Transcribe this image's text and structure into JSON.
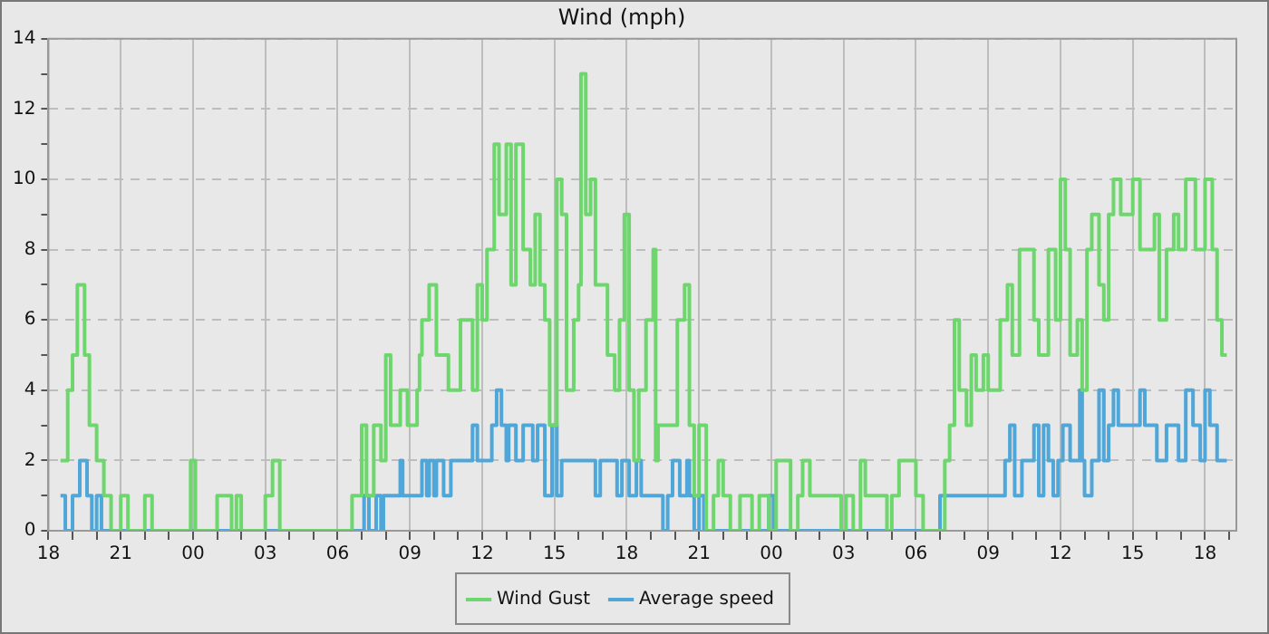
{
  "chart_data": {
    "type": "step",
    "title": "Wind (mph)",
    "xlim": [
      18,
      67.3
    ],
    "xticks": [
      {
        "value": 18,
        "label": "18"
      },
      {
        "value": 19,
        "label": null
      },
      {
        "value": 20,
        "label": null
      },
      {
        "value": 21,
        "label": "21"
      },
      {
        "value": 22,
        "label": null
      },
      {
        "value": 23,
        "label": null
      },
      {
        "value": 24,
        "label": "00"
      },
      {
        "value": 25,
        "label": null
      },
      {
        "value": 26,
        "label": null
      },
      {
        "value": 27,
        "label": "03"
      },
      {
        "value": 28,
        "label": null
      },
      {
        "value": 29,
        "label": null
      },
      {
        "value": 30,
        "label": "06"
      },
      {
        "value": 31,
        "label": null
      },
      {
        "value": 32,
        "label": null
      },
      {
        "value": 33,
        "label": "09"
      },
      {
        "value": 34,
        "label": null
      },
      {
        "value": 35,
        "label": null
      },
      {
        "value": 36,
        "label": "12"
      },
      {
        "value": 37,
        "label": null
      },
      {
        "value": 38,
        "label": null
      },
      {
        "value": 39,
        "label": "15"
      },
      {
        "value": 40,
        "label": null
      },
      {
        "value": 41,
        "label": null
      },
      {
        "value": 42,
        "label": "18"
      },
      {
        "value": 43,
        "label": null
      },
      {
        "value": 44,
        "label": null
      },
      {
        "value": 45,
        "label": "21"
      },
      {
        "value": 46,
        "label": null
      },
      {
        "value": 47,
        "label": null
      },
      {
        "value": 48,
        "label": "00"
      },
      {
        "value": 49,
        "label": null
      },
      {
        "value": 50,
        "label": null
      },
      {
        "value": 51,
        "label": "03"
      },
      {
        "value": 52,
        "label": null
      },
      {
        "value": 53,
        "label": null
      },
      {
        "value": 54,
        "label": "06"
      },
      {
        "value": 55,
        "label": null
      },
      {
        "value": 56,
        "label": null
      },
      {
        "value": 57,
        "label": "09"
      },
      {
        "value": 58,
        "label": null
      },
      {
        "value": 59,
        "label": null
      },
      {
        "value": 60,
        "label": "12"
      },
      {
        "value": 61,
        "label": null
      },
      {
        "value": 62,
        "label": null
      },
      {
        "value": 63,
        "label": "15"
      },
      {
        "value": 64,
        "label": null
      },
      {
        "value": 65,
        "label": null
      },
      {
        "value": 66,
        "label": "18"
      },
      {
        "value": 67,
        "label": null
      }
    ],
    "ylim": [
      0,
      14
    ],
    "yticks": [
      0,
      {
        "value": 1,
        "label": null
      },
      2,
      {
        "value": 3,
        "label": null
      },
      4,
      {
        "value": 5,
        "label": null
      },
      6,
      {
        "value": 7,
        "label": null
      },
      8,
      {
        "value": 9,
        "label": null
      },
      10,
      {
        "value": 11,
        "label": null
      },
      12,
      {
        "value": 13,
        "label": null
      },
      14
    ],
    "grid": true,
    "legend": "bottom",
    "line_style": "solid",
    "marker": "none",
    "series": [
      {
        "name": "Wind Gust",
        "color": "#6dd66d",
        "x": [
          18.5,
          18.8,
          19.0,
          19.2,
          19.5,
          19.7,
          20.0,
          20.3,
          20.6,
          21.0,
          21.3,
          22.0,
          22.3,
          23.9,
          24.1,
          25.0,
          25.6,
          25.8,
          26.0,
          27.0,
          27.3,
          27.6,
          30.6,
          31.0,
          31.2,
          31.5,
          31.8,
          32.0,
          32.2,
          32.6,
          32.9,
          33.3,
          33.4,
          33.5,
          33.8,
          34.1,
          34.6,
          35.1,
          35.6,
          35.8,
          36.0,
          36.2,
          36.5,
          36.7,
          37.0,
          37.2,
          37.4,
          37.7,
          38.0,
          38.2,
          38.4,
          38.6,
          38.8,
          39.1,
          39.3,
          39.5,
          39.8,
          40.0,
          40.1,
          40.3,
          40.5,
          40.7,
          41.2,
          41.5,
          41.7,
          41.9,
          42.1,
          42.3,
          42.5,
          42.8,
          43.1,
          43.2,
          43.3,
          44.1,
          44.4,
          44.6,
          44.8,
          45.0,
          45.3,
          45.6,
          45.8,
          46.0,
          46.3,
          46.7,
          47.2,
          47.5,
          47.9,
          48.2,
          48.8,
          49.1,
          49.3,
          49.6,
          50.9,
          51.1,
          51.4,
          51.7,
          51.9,
          52.8,
          53.0,
          53.3,
          54.0,
          54.3,
          55.2,
          55.4,
          55.6,
          55.8,
          56.1,
          56.3,
          56.5,
          56.8,
          57.0,
          57.5,
          57.8,
          58.0,
          58.3,
          58.9,
          59.1,
          59.5,
          59.8,
          60.0,
          60.2,
          60.4,
          60.7,
          60.9,
          61.1,
          61.3,
          61.6,
          61.8,
          62.0,
          62.2,
          62.5,
          62.8,
          63.0,
          63.3,
          63.6,
          63.9,
          64.1,
          64.4,
          64.7,
          64.9,
          65.2,
          65.6,
          66.0,
          66.3,
          66.5,
          66.7,
          66.9
        ],
        "values": [
          2,
          4,
          5,
          7,
          5,
          3,
          2,
          1,
          0,
          1,
          0,
          1,
          0,
          2,
          0,
          1,
          0,
          1,
          0,
          1,
          2,
          0,
          1,
          3,
          1,
          3,
          2,
          5,
          3,
          4,
          3,
          4,
          5,
          6,
          7,
          5,
          4,
          6,
          4,
          7,
          6,
          8,
          11,
          9,
          11,
          7,
          11,
          8,
          7,
          9,
          7,
          6,
          3,
          10,
          9,
          4,
          6,
          7,
          13,
          9,
          10,
          7,
          5,
          4,
          6,
          9,
          4,
          2,
          4,
          6,
          8,
          2,
          3,
          6,
          7,
          3,
          1,
          3,
          0,
          1,
          2,
          1,
          0,
          1,
          0,
          1,
          0,
          2,
          0,
          1,
          2,
          1,
          0,
          1,
          0,
          2,
          1,
          0,
          1,
          2,
          1,
          0,
          2,
          3,
          6,
          4,
          3,
          5,
          4,
          5,
          4,
          6,
          7,
          5,
          8,
          6,
          5,
          8,
          6,
          10,
          8,
          5,
          6,
          4,
          8,
          9,
          7,
          6,
          9,
          10,
          9,
          9,
          10,
          8,
          8,
          9,
          6,
          8,
          9,
          8,
          10,
          8,
          10,
          8,
          6,
          5,
          5
        ]
      },
      {
        "name": "Average speed",
        "color": "#4ea7d8",
        "x": [
          18.5,
          18.7,
          19.0,
          19.3,
          19.6,
          19.8,
          20.0,
          20.2,
          31.1,
          31.3,
          31.6,
          31.8,
          31.9,
          32.6,
          32.7,
          33.5,
          33.7,
          33.8,
          34.0,
          34.1,
          34.4,
          34.7,
          35.6,
          35.8,
          36.4,
          36.6,
          36.8,
          37.0,
          37.1,
          37.4,
          37.7,
          38.1,
          38.3,
          38.6,
          38.9,
          39.1,
          39.3,
          40.7,
          40.9,
          41.6,
          41.8,
          42.1,
          42.4,
          42.6,
          43.5,
          43.7,
          43.9,
          44.2,
          44.5,
          44.6,
          44.8,
          45.0,
          45.2,
          47.9,
          48.1,
          55.0,
          57.7,
          57.9,
          58.1,
          58.4,
          58.9,
          59.1,
          59.3,
          59.5,
          59.7,
          59.9,
          60.1,
          60.4,
          60.8,
          60.9,
          61.0,
          61.3,
          61.6,
          61.8,
          62.0,
          62.2,
          62.4,
          62.8,
          63.3,
          63.5,
          64.0,
          64.4,
          64.9,
          65.2,
          65.5,
          65.8,
          66.0,
          66.2,
          66.5,
          66.9
        ],
        "values": [
          1,
          0,
          1,
          2,
          1,
          0,
          1,
          0,
          1,
          0,
          1,
          0,
          1,
          2,
          1,
          2,
          1,
          2,
          1,
          2,
          1,
          2,
          3,
          2,
          3,
          4,
          3,
          2,
          3,
          2,
          3,
          2,
          3,
          1,
          3,
          1,
          2,
          1,
          2,
          1,
          2,
          1,
          2,
          1,
          0,
          1,
          2,
          1,
          2,
          1,
          0,
          1,
          0,
          1,
          0,
          1,
          2,
          3,
          1,
          2,
          3,
          1,
          3,
          2,
          1,
          2,
          3,
          2,
          4,
          2,
          1,
          2,
          4,
          2,
          3,
          4,
          3,
          3,
          4,
          3,
          2,
          3,
          2,
          4,
          3,
          2,
          4,
          3,
          2,
          2
        ]
      }
    ]
  }
}
